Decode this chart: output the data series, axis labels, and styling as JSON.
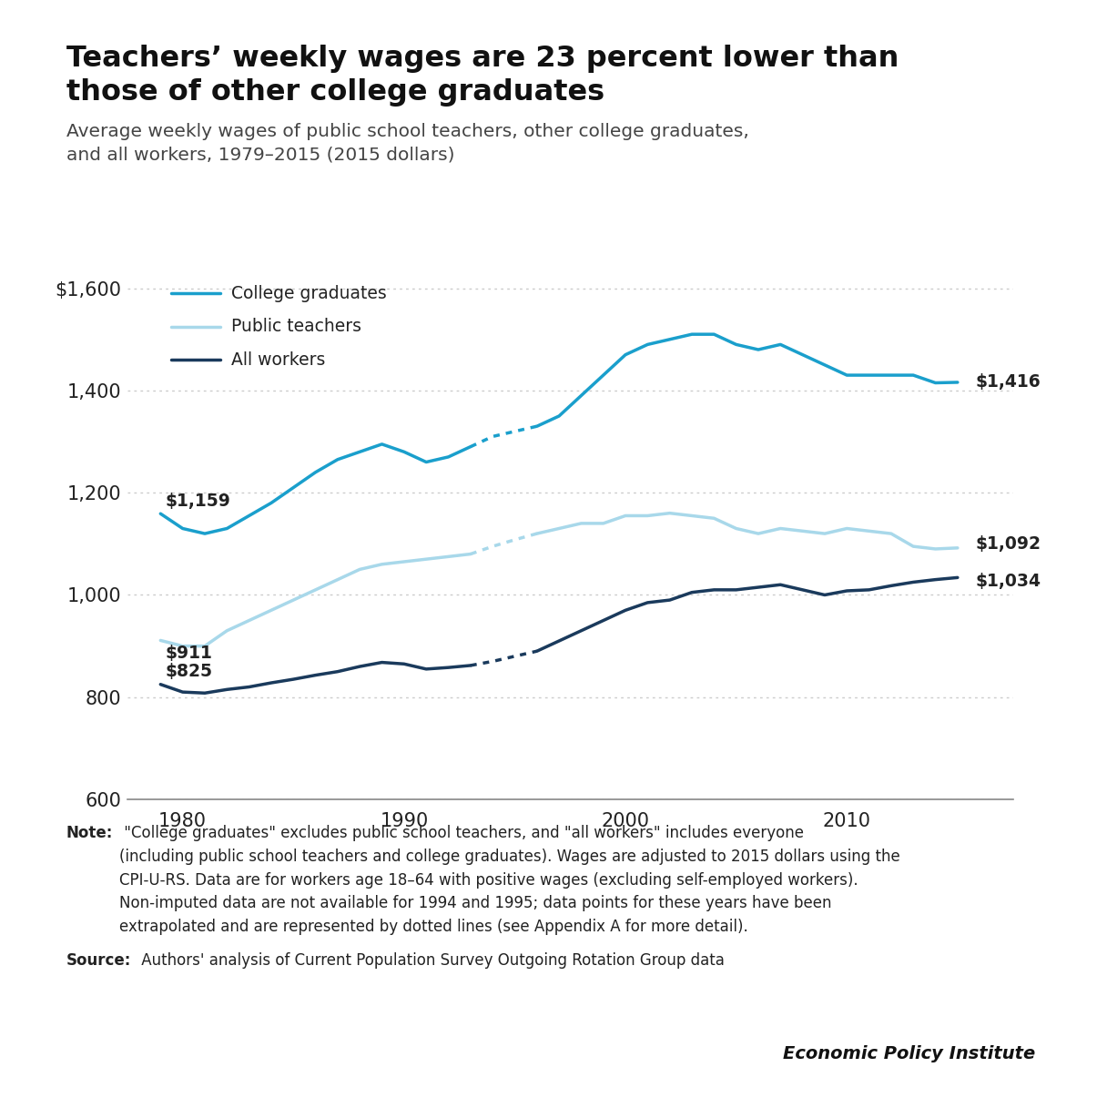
{
  "title": "Teachers’ weekly wages are 23 percent lower than\nthose of other college graduates",
  "subtitle": "Average weekly wages of public school teachers, other college graduates,\nand all workers, 1979–2015 (2015 dollars)",
  "note_bold": "Note:",
  "note_rest": " \"College graduates\" excludes public school teachers, and \"all workers\" includes everyone\n(including public school teachers and college graduates). Wages are adjusted to 2015 dollars using the\nCPI-U-RS. Data are for workers age 18–64 with positive wages (excluding self-employed workers).\nNon-imputed data are not available for 1994 and 1995; data points for these years have been\nextrapolated and are represented by dotted lines (see Appendix A for more detail).",
  "source_bold": "Source:",
  "source_rest": " Authors' analysis of Current Population Survey Outgoing Rotation Group data",
  "branding": "Economic Policy Institute",
  "college_grads": {
    "years": [
      1979,
      1980,
      1981,
      1982,
      1983,
      1984,
      1985,
      1986,
      1987,
      1988,
      1989,
      1990,
      1991,
      1992,
      1993,
      1996,
      1997,
      1998,
      1999,
      2000,
      2001,
      2002,
      2003,
      2004,
      2005,
      2006,
      2007,
      2008,
      2009,
      2010,
      2011,
      2012,
      2013,
      2014,
      2015
    ],
    "values": [
      1159,
      1130,
      1120,
      1130,
      1155,
      1180,
      1210,
      1240,
      1265,
      1280,
      1295,
      1280,
      1260,
      1270,
      1290,
      1330,
      1350,
      1390,
      1430,
      1470,
      1490,
      1500,
      1510,
      1510,
      1490,
      1480,
      1490,
      1470,
      1450,
      1430,
      1430,
      1430,
      1430,
      1415,
      1416
    ],
    "dotted_years": [
      1993,
      1994,
      1995,
      1996
    ],
    "dotted_values": [
      1290,
      1310,
      1320,
      1330
    ],
    "color": "#1a9fcc",
    "label": "College graduates",
    "end_label": "$1,416",
    "start_label": "$1,159"
  },
  "public_teachers": {
    "years": [
      1979,
      1980,
      1981,
      1982,
      1983,
      1984,
      1985,
      1986,
      1987,
      1988,
      1989,
      1990,
      1991,
      1992,
      1993,
      1996,
      1997,
      1998,
      1999,
      2000,
      2001,
      2002,
      2003,
      2004,
      2005,
      2006,
      2007,
      2008,
      2009,
      2010,
      2011,
      2012,
      2013,
      2014,
      2015
    ],
    "values": [
      911,
      900,
      900,
      930,
      950,
      970,
      990,
      1010,
      1030,
      1050,
      1060,
      1065,
      1070,
      1075,
      1080,
      1120,
      1130,
      1140,
      1140,
      1155,
      1155,
      1160,
      1155,
      1150,
      1130,
      1120,
      1130,
      1125,
      1120,
      1130,
      1125,
      1120,
      1095,
      1090,
      1092
    ],
    "dotted_years": [
      1993,
      1994,
      1995,
      1996
    ],
    "dotted_values": [
      1080,
      1095,
      1108,
      1120
    ],
    "color": "#a8d8ea",
    "label": "Public teachers",
    "end_label": "$1,092",
    "start_label": "$911"
  },
  "all_workers": {
    "years": [
      1979,
      1980,
      1981,
      1982,
      1983,
      1984,
      1985,
      1986,
      1987,
      1988,
      1989,
      1990,
      1991,
      1992,
      1993,
      1996,
      1997,
      1998,
      1999,
      2000,
      2001,
      2002,
      2003,
      2004,
      2005,
      2006,
      2007,
      2008,
      2009,
      2010,
      2011,
      2012,
      2013,
      2014,
      2015
    ],
    "values": [
      825,
      810,
      808,
      815,
      820,
      828,
      835,
      843,
      850,
      860,
      868,
      865,
      855,
      858,
      862,
      890,
      910,
      930,
      950,
      970,
      985,
      990,
      1005,
      1010,
      1010,
      1015,
      1020,
      1010,
      1000,
      1008,
      1010,
      1018,
      1025,
      1030,
      1034
    ],
    "dotted_years": [
      1993,
      1994,
      1995,
      1996
    ],
    "dotted_values": [
      862,
      870,
      880,
      890
    ],
    "color": "#1a3a5c",
    "label": "All workers",
    "end_label": "$1,034",
    "start_label": "$825"
  },
  "ylim": [
    600,
    1650
  ],
  "yticks": [
    600,
    800,
    1000,
    1200,
    1400,
    1600
  ],
  "ytick_labels": [
    "600",
    "800",
    "1,000",
    "1,200",
    "1,400",
    "$1,600"
  ],
  "xlim": [
    1977.5,
    2017.5
  ],
  "xticks": [
    1980,
    1990,
    2000,
    2010
  ],
  "background_color": "#ffffff",
  "grid_color": "#cccccc",
  "text_color": "#222222",
  "topbar_color": "#d0d0d0",
  "botbar_color": "#d0d0d0"
}
